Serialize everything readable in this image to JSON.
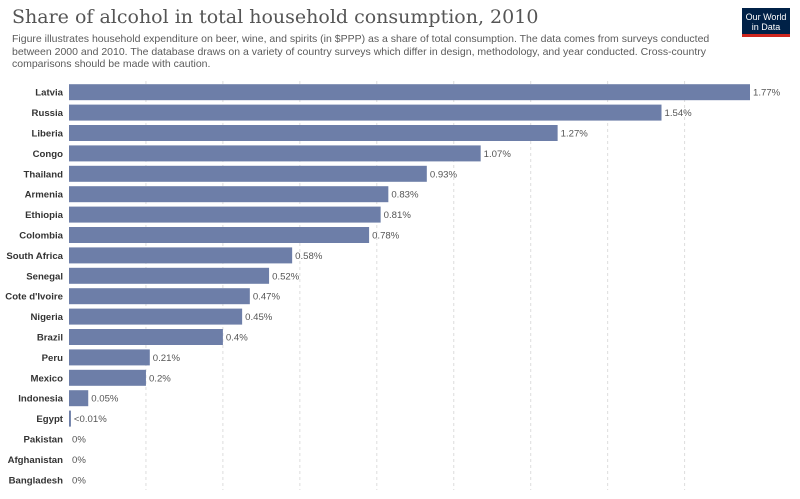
{
  "header": {
    "title": "Share of alcohol in total household consumption, 2010",
    "subtitle": "Figure illustrates household expenditure on beer, wine, and spirits (in $PPP) as a share of total consumption. The data comes from surveys conducted between 2000 and 2010. The database draws on a variety of country surveys which differ in design, methodology, and year conducted. Cross-country comparisons should be made with caution.",
    "logo_line1": "Our World",
    "logo_line2": "in Data"
  },
  "colors": {
    "bar": "#6d7ea8",
    "logo_bg": "#002147",
    "logo_accent": "#ce261e"
  },
  "chart_data": {
    "type": "bar",
    "orientation": "horizontal",
    "title": "Share of alcohol in total household consumption, 2010",
    "xlim": [
      0,
      1.8
    ],
    "grid": true,
    "categories": [
      "Latvia",
      "Russia",
      "Liberia",
      "Congo",
      "Thailand",
      "Armenia",
      "Ethiopia",
      "Colombia",
      "South Africa",
      "Senegal",
      "Cote d'Ivoire",
      "Nigeria",
      "Brazil",
      "Peru",
      "Mexico",
      "Indonesia",
      "Egypt",
      "Pakistan",
      "Afghanistan",
      "Bangladesh"
    ],
    "values": [
      1.77,
      1.54,
      1.27,
      1.07,
      0.93,
      0.83,
      0.81,
      0.78,
      0.58,
      0.52,
      0.47,
      0.45,
      0.4,
      0.21,
      0.2,
      0.05,
      0.005,
      0,
      0,
      0
    ],
    "value_labels": [
      "1.77%",
      "1.54%",
      "1.27%",
      "1.07%",
      "0.93%",
      "0.83%",
      "0.81%",
      "0.78%",
      "0.58%",
      "0.52%",
      "0.47%",
      "0.45%",
      "0.4%",
      "0.21%",
      "0.2%",
      "0.05%",
      "<0.01%",
      "0%",
      "0%",
      "0%"
    ]
  }
}
